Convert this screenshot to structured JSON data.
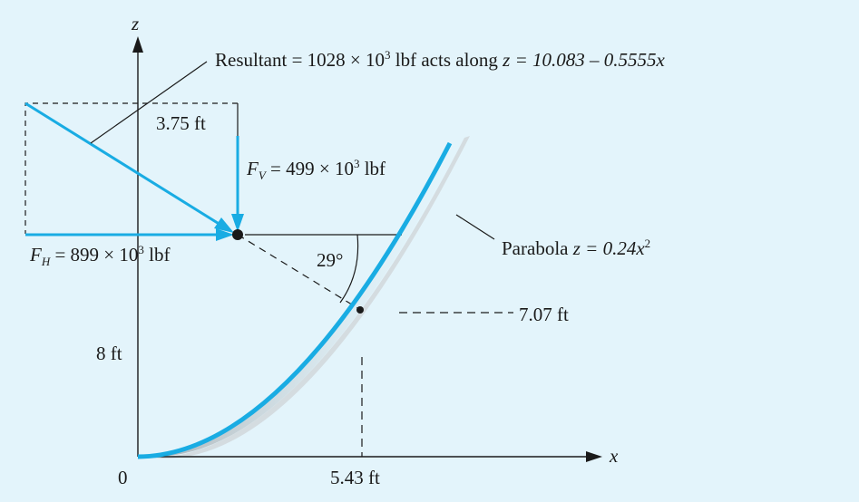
{
  "axes": {
    "z_label": "z",
    "x_label": "x",
    "origin_label": "0"
  },
  "resultant": {
    "text_before": "Resultant = 1028 × 10",
    "exponent": "3",
    "text_after": " lbf acts along ",
    "equation": "z = 10.083 – 0.5555x"
  },
  "fv": {
    "symbol": "F",
    "subscript": "V",
    "text": " = 499 × 10",
    "exponent": "3",
    "unit": " lbf"
  },
  "fh": {
    "symbol": "F",
    "subscript": "H",
    "text": " = 899 × 10",
    "exponent": "3",
    "unit": " lbf"
  },
  "parabola": {
    "text": "Parabola ",
    "equation": "z = 0.24x",
    "exponent": "2"
  },
  "dimensions": {
    "width_top": "3.75 ft",
    "height_line": "7.07 ft",
    "depth": "8 ft",
    "x_distance": "5.43 ft"
  },
  "angle": "29°",
  "colors": {
    "background": "#e3f4fb",
    "force_blue": "#19ace3",
    "ink": "#1a1a1a",
    "shadow": "#b9bcbf"
  }
}
